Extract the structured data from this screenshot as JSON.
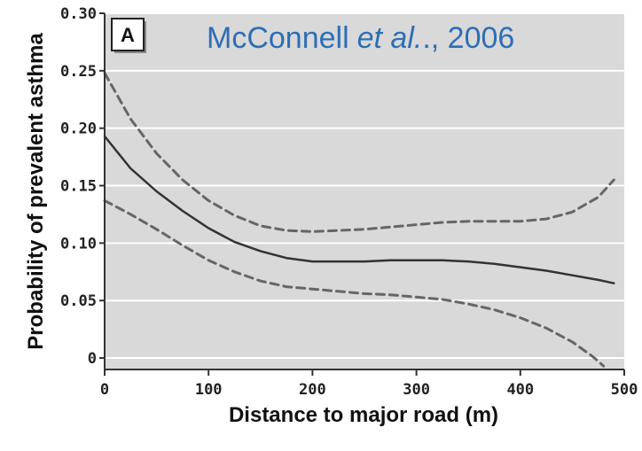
{
  "chart_data": {
    "type": "line",
    "panel_label": "A",
    "citation": {
      "author": "McConnell",
      "etal": "et al.",
      "year_suffix": "., 2006"
    },
    "xlabel": "Distance to major road (m)",
    "ylabel": "Probability of prevalent asthma",
    "xlim": [
      0,
      500
    ],
    "ylim": [
      -0.01,
      0.3
    ],
    "x_ticks": [
      0,
      100,
      200,
      300,
      400,
      500
    ],
    "x_tick_labels": [
      "0",
      "100",
      "200",
      "300",
      "400",
      "500"
    ],
    "y_ticks": [
      0,
      0.05,
      0.1,
      0.15,
      0.2,
      0.25,
      0.3
    ],
    "y_tick_labels": [
      "0",
      "0.05",
      "0.10",
      "0.15",
      "0.20",
      "0.25",
      "0.30"
    ],
    "grid": "horizontal",
    "colors": {
      "plot_background": "#d9d9d9",
      "grid": "#ffffff",
      "estimate": "#333333",
      "ci": "#666666",
      "citation": "#2e6eb5"
    },
    "series": [
      {
        "style": "solid",
        "x": [
          0,
          25,
          50,
          75,
          100,
          125,
          150,
          175,
          200,
          225,
          250,
          275,
          300,
          325,
          350,
          375,
          400,
          425,
          450,
          475,
          490
        ],
        "y": [
          0.193,
          0.165,
          0.145,
          0.128,
          0.113,
          0.101,
          0.093,
          0.087,
          0.084,
          0.084,
          0.084,
          0.085,
          0.085,
          0.085,
          0.084,
          0.082,
          0.079,
          0.076,
          0.072,
          0.068,
          0.065
        ]
      },
      {
        "style": "dashed",
        "x": [
          0,
          25,
          50,
          75,
          100,
          125,
          150,
          175,
          200,
          225,
          250,
          275,
          300,
          325,
          350,
          375,
          400,
          425,
          450,
          475,
          490
        ],
        "y": [
          0.248,
          0.208,
          0.178,
          0.155,
          0.137,
          0.124,
          0.115,
          0.111,
          0.11,
          0.111,
          0.112,
          0.114,
          0.116,
          0.118,
          0.119,
          0.119,
          0.119,
          0.121,
          0.127,
          0.14,
          0.155
        ]
      },
      {
        "style": "dashed",
        "x": [
          0,
          25,
          50,
          75,
          100,
          125,
          150,
          175,
          200,
          225,
          250,
          275,
          300,
          325,
          350,
          375,
          400,
          425,
          450,
          470,
          480
        ],
        "y": [
          0.137,
          0.125,
          0.112,
          0.098,
          0.085,
          0.075,
          0.067,
          0.062,
          0.06,
          0.058,
          0.056,
          0.055,
          0.053,
          0.051,
          0.047,
          0.042,
          0.035,
          0.026,
          0.014,
          0.001,
          -0.007
        ]
      }
    ]
  }
}
